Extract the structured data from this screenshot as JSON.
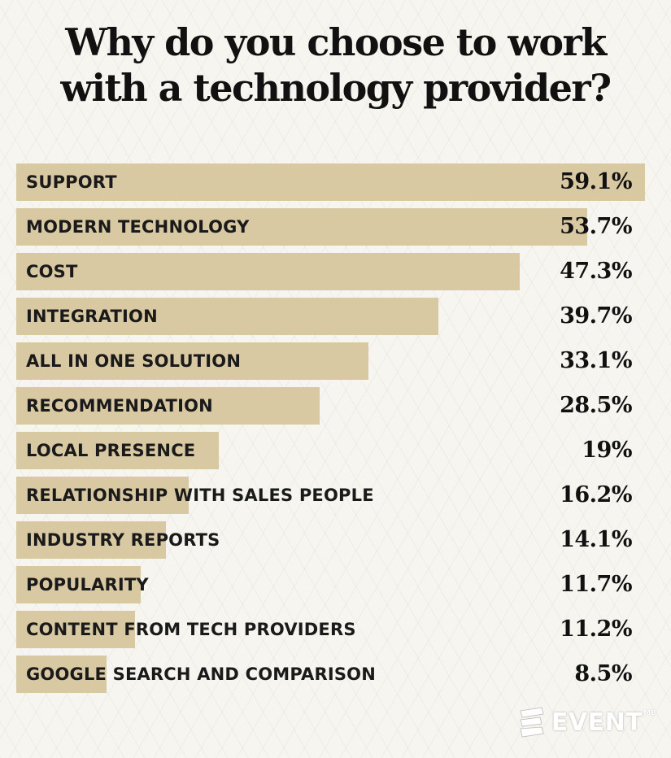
{
  "chart_data": {
    "type": "bar",
    "orientation": "horizontal",
    "title_lines": [
      "Why do you choose to work",
      "with a technology provider?"
    ],
    "categories": [
      "SUPPORT",
      "MODERN TECHNOLOGY",
      "COST",
      "INTEGRATION",
      "ALL IN ONE SOLUTION",
      "RECOMMENDATION",
      "LOCAL PRESENCE",
      "RELATIONSHIP WITH SALES PEOPLE",
      "INDUSTRY REPORTS",
      "POPULARITY",
      "CONTENT FROM TECH PROVIDERS",
      "GOOGLE SEARCH AND COMPARISON"
    ],
    "values": [
      59.1,
      53.7,
      47.3,
      39.7,
      33.1,
      28.5,
      19,
      16.2,
      14.1,
      11.7,
      11.2,
      8.5
    ],
    "value_labels": [
      "59.1%",
      "53.7%",
      "47.3%",
      "39.7%",
      "33.1%",
      "28.5%",
      "19%",
      "16.2%",
      "14.1%",
      "11.7%",
      "11.2%",
      "8.5%"
    ],
    "xlim": [
      0,
      59.1
    ],
    "grid": false,
    "legend": "none",
    "colors": {
      "bar": "#d9c9a3",
      "text": "#111111",
      "background": "#f7f5f0"
    }
  },
  "branding": {
    "logo_text": "EVENT",
    "logo_sup": "MB",
    "logo_icon": "event-mb-logo-icon"
  }
}
